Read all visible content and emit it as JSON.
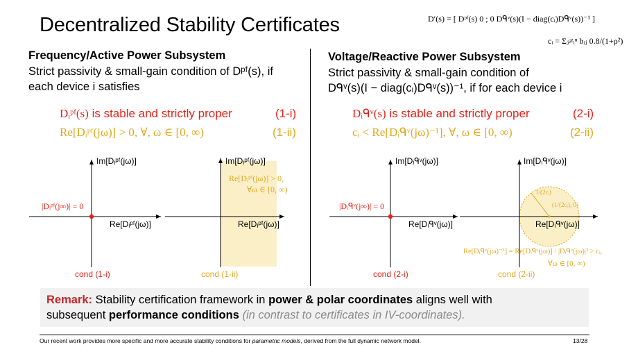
{
  "slide": {
    "title": "Decentralized Stability Certificates",
    "top_eq_D": "D′(s) = [ Dᵖᶠ(s)   0 ;   0   Dᑫᵛ(s)(I − diag(cᵢ)Dᑫᵛ(s))⁻¹ ]",
    "top_eq_c": "cᵢ = Σⱼ≠ᵢⁿ bᵢⱼ 0.8/(1+ρ²)",
    "page_number": "13/28"
  },
  "left": {
    "heading": "Frequency/Active Power Subsystem",
    "text_1": "Strict passivity & small-gain condition of Dᵖᶠ(s), if",
    "text_2": "each device i satisfies",
    "cond1_expr": "Dᵢᵖᶠ(s)",
    "cond1_text": "is stable and strictly proper",
    "cond1_tag": "(1-i)",
    "cond2_expr": "Re[Dᵢᵖᶠ(jω)] > 0,    ∀, ω ∈ [0, ∞)",
    "cond2_tag": "(1-ii)",
    "plot1": {
      "ylabel": "Im[Dᵢᵖᶠ(jω)]",
      "xlabel": "Re[Dᵢᵖᶠ(jω)]",
      "annotation": "|Dᵢᵖᶠ(j∞)| = 0",
      "caption": "cond (1-i)"
    },
    "plot2": {
      "ylabel": "Im[Dᵢᵖᶠ(jω)]",
      "xlabel": "Re[Dᵢᵖᶠ(jω)]",
      "annotation_1": "Re[Dᵢᵖᶠ(jω)] > 0,",
      "annotation_2": "∀ω ∈ [0, ∞)",
      "caption": "cond (1-ii)"
    }
  },
  "right": {
    "heading": "Voltage/Reactive Power Subsystem",
    "text_1": "Strict passivity & small-gain condition of",
    "text_2": "Dᑫᵛ(s)(I − diag(cᵢ)Dᑫᵛ(s))⁻¹, if for each device i",
    "cond1_expr": "Dᵢᑫᵛ(s)",
    "cond1_text": "is stable and strictly proper",
    "cond1_tag": "(2-i)",
    "cond2_expr": "cᵢ < Re[Dᵢᑫᵛ(jω)⁻¹],    ∀, ω ∈ [0, ∞)",
    "cond2_tag": "(2-ii)",
    "plot3": {
      "ylabel": "Im[Dᵢᑫᵛ(jω)]",
      "xlabel": "Re[Dᵢᑫᵛ(jω)]",
      "annotation": "|Dᵢᑫᵛ(j∞)| = 0",
      "caption": "cond (2-i)"
    },
    "plot4": {
      "ylabel": "Im[Dᵢᑫᵛ(jω)]",
      "xlabel": "Re[Dᵢᑫᵛ(jω)]",
      "radius_label": "1/(2cᵢ)",
      "center_label": "(1/(2cᵢ), 0)",
      "annotation_1": "Re[Dᵢᑫᵛ(jω)⁻¹] = Re[Dᵢᑫᵛ(jω)] / |Dᵢᑫᵛ(jω)|² > cᵢ,",
      "annotation_2": "∀ω ∈ [0, ∞)",
      "caption": "cond (2-ii)"
    }
  },
  "remark": {
    "label": "Remark:",
    "text_a": "Stability certification framework in",
    "bold_a": "power & polar coordinates",
    "text_b": "aligns well with",
    "text_c": "subsequent",
    "bold_b": "performance conditions",
    "italic": "(in contrast to certificates in IV-coordinates)."
  },
  "footer": {
    "text_a": "Our recent work provides more specific and more accurate stability conditions for",
    "italic": "parametric models",
    "text_b": ", derived from the full dynamic network model."
  },
  "colors": {
    "red": "#e2231a",
    "gold": "#e0a81f",
    "shade": "#fbefc8",
    "remark_bg": "#f1f1f1"
  }
}
